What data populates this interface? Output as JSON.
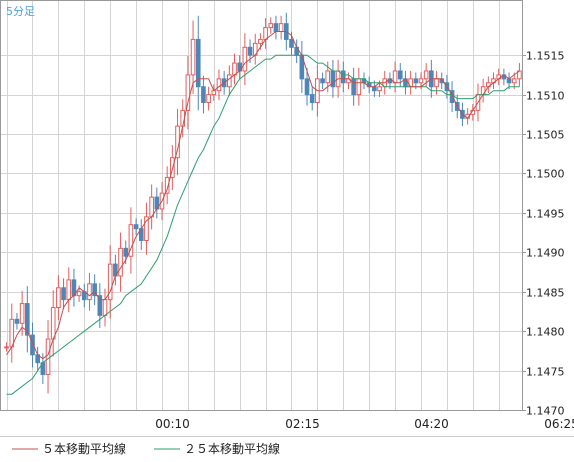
{
  "timeframe_label": "5分足",
  "legend": [
    {
      "label": "５本移動平均線",
      "color": "#c0504d"
    },
    {
      "label": "２５本移動平均線",
      "color": "#2e9e6e"
    }
  ],
  "colors": {
    "candle_up": "#e35d5d",
    "candle_down": "#4f86b8",
    "grid": "#d4d4d4",
    "timeframe_text": "#4aa3df",
    "axis_text": "#222222"
  },
  "chart_data": {
    "type": "candlestick",
    "title": "",
    "xlabel": "",
    "ylabel": "",
    "ylim": [
      1.147,
      1.1522
    ],
    "y_ticks": [
      "1.1470",
      "1.1475",
      "1.1480",
      "1.1485",
      "1.1490",
      "1.1495",
      "1.1500",
      "1.1505",
      "1.1510",
      "1.1515"
    ],
    "x_ticks": [
      {
        "label": "00:10",
        "index": 32
      },
      {
        "label": "02:15",
        "index": 57
      },
      {
        "label": "04:20",
        "index": 82
      },
      {
        "label": "06:25",
        "index": 107
      }
    ],
    "grid": true,
    "legend_position": "bottom",
    "close": [
      1.1478,
      1.14815,
      1.1481,
      1.14835,
      1.14795,
      1.1477,
      1.1476,
      1.14745,
      1.1479,
      1.1483,
      1.14855,
      1.1484,
      1.14865,
      1.14845,
      1.1485,
      1.1484,
      1.1486,
      1.14845,
      1.1482,
      1.1484,
      1.14885,
      1.1487,
      1.14905,
      1.14895,
      1.14935,
      1.1493,
      1.14915,
      1.14945,
      1.1497,
      1.14955,
      1.14975,
      1.14995,
      1.1502,
      1.1506,
      1.1508,
      1.15125,
      1.1517,
      1.1511,
      1.1509,
      1.151,
      1.15105,
      1.1512,
      1.1511,
      1.15125,
      1.1514,
      1.1513,
      1.1516,
      1.1515,
      1.15165,
      1.1517,
      1.15185,
      1.1519,
      1.1518,
      1.1519,
      1.1517,
      1.1516,
      1.1515,
      1.1512,
      1.151,
      1.1509,
      1.1512,
      1.15115,
      1.1513,
      1.1511,
      1.1513,
      1.15115,
      1.1512,
      1.151,
      1.1512,
      1.15115,
      1.1511,
      1.15105,
      1.1511,
      1.1512,
      1.15115,
      1.1513,
      1.1512,
      1.1511,
      1.1512,
      1.15115,
      1.1512,
      1.1513,
      1.1511,
      1.1512,
      1.15115,
      1.15105,
      1.1509,
      1.1508,
      1.1507,
      1.15075,
      1.1508,
      1.151,
      1.1511,
      1.15115,
      1.1512,
      1.15125,
      1.1512,
      1.15115,
      1.1512,
      1.1513
    ],
    "ma5": [
      1.1477,
      1.1478,
      1.14795,
      1.14805,
      1.148,
      1.14785,
      1.1477,
      1.14765,
      1.1477,
      1.1479,
      1.14805,
      1.1483,
      1.1484,
      1.14845,
      1.14855,
      1.1485,
      1.14845,
      1.1485,
      1.1484,
      1.1484,
      1.1485,
      1.1487,
      1.1488,
      1.1489,
      1.14905,
      1.1492,
      1.1493,
      1.1494,
      1.14945,
      1.14955,
      1.14965,
      1.1498,
      1.15005,
      1.1503,
      1.1506,
      1.1509,
      1.15115,
      1.1512,
      1.1512,
      1.1512,
      1.15105,
      1.1511,
      1.15115,
      1.1512,
      1.15125,
      1.1513,
      1.1514,
      1.15145,
      1.1515,
      1.1516,
      1.1517,
      1.15175,
      1.1518,
      1.1518,
      1.1518,
      1.15175,
      1.1516,
      1.1515,
      1.1513,
      1.1511,
      1.15105,
      1.15105,
      1.1511,
      1.15115,
      1.1512,
      1.1512,
      1.1512,
      1.15115,
      1.15115,
      1.15115,
      1.1511,
      1.1511,
      1.15115,
      1.15115,
      1.1512,
      1.15115,
      1.15115,
      1.1512,
      1.1511,
      1.1511,
      1.1511,
      1.15115,
      1.1512,
      1.1512,
      1.1512,
      1.1511,
      1.151,
      1.15085,
      1.15075,
      1.1507,
      1.1508,
      1.1509,
      1.151,
      1.1511,
      1.15115,
      1.1512,
      1.15125,
      1.1512,
      1.15125,
      1.1513
    ],
    "ma25": [
      1.1472,
      1.1472,
      1.14725,
      1.1473,
      1.14735,
      1.1474,
      1.1475,
      1.1476,
      1.14765,
      1.1477,
      1.14775,
      1.1478,
      1.14785,
      1.1479,
      1.14795,
      1.148,
      1.14805,
      1.1481,
      1.14815,
      1.1482,
      1.14825,
      1.1483,
      1.14835,
      1.14845,
      1.1485,
      1.14855,
      1.1486,
      1.1487,
      1.1488,
      1.1489,
      1.14905,
      1.1492,
      1.1494,
      1.1496,
      1.14975,
      1.1499,
      1.15005,
      1.1502,
      1.1503,
      1.15045,
      1.1506,
      1.1507,
      1.15085,
      1.151,
      1.1511,
      1.1512,
      1.15125,
      1.1513,
      1.15135,
      1.1514,
      1.15145,
      1.15145,
      1.1515,
      1.1515,
      1.1515,
      1.1515,
      1.1515,
      1.1515,
      1.1515,
      1.15145,
      1.1514,
      1.1514,
      1.15135,
      1.1513,
      1.1513,
      1.15125,
      1.15125,
      1.1512,
      1.1512,
      1.1512,
      1.15115,
      1.15115,
      1.15115,
      1.1511,
      1.1511,
      1.1511,
      1.1511,
      1.1511,
      1.1511,
      1.1511,
      1.1511,
      1.1511,
      1.15105,
      1.15105,
      1.15105,
      1.151,
      1.151,
      1.15095,
      1.15095,
      1.15095,
      1.15095,
      1.151,
      1.151,
      1.151,
      1.15105,
      1.15105,
      1.15105,
      1.1511,
      1.1511,
      1.1511
    ]
  }
}
